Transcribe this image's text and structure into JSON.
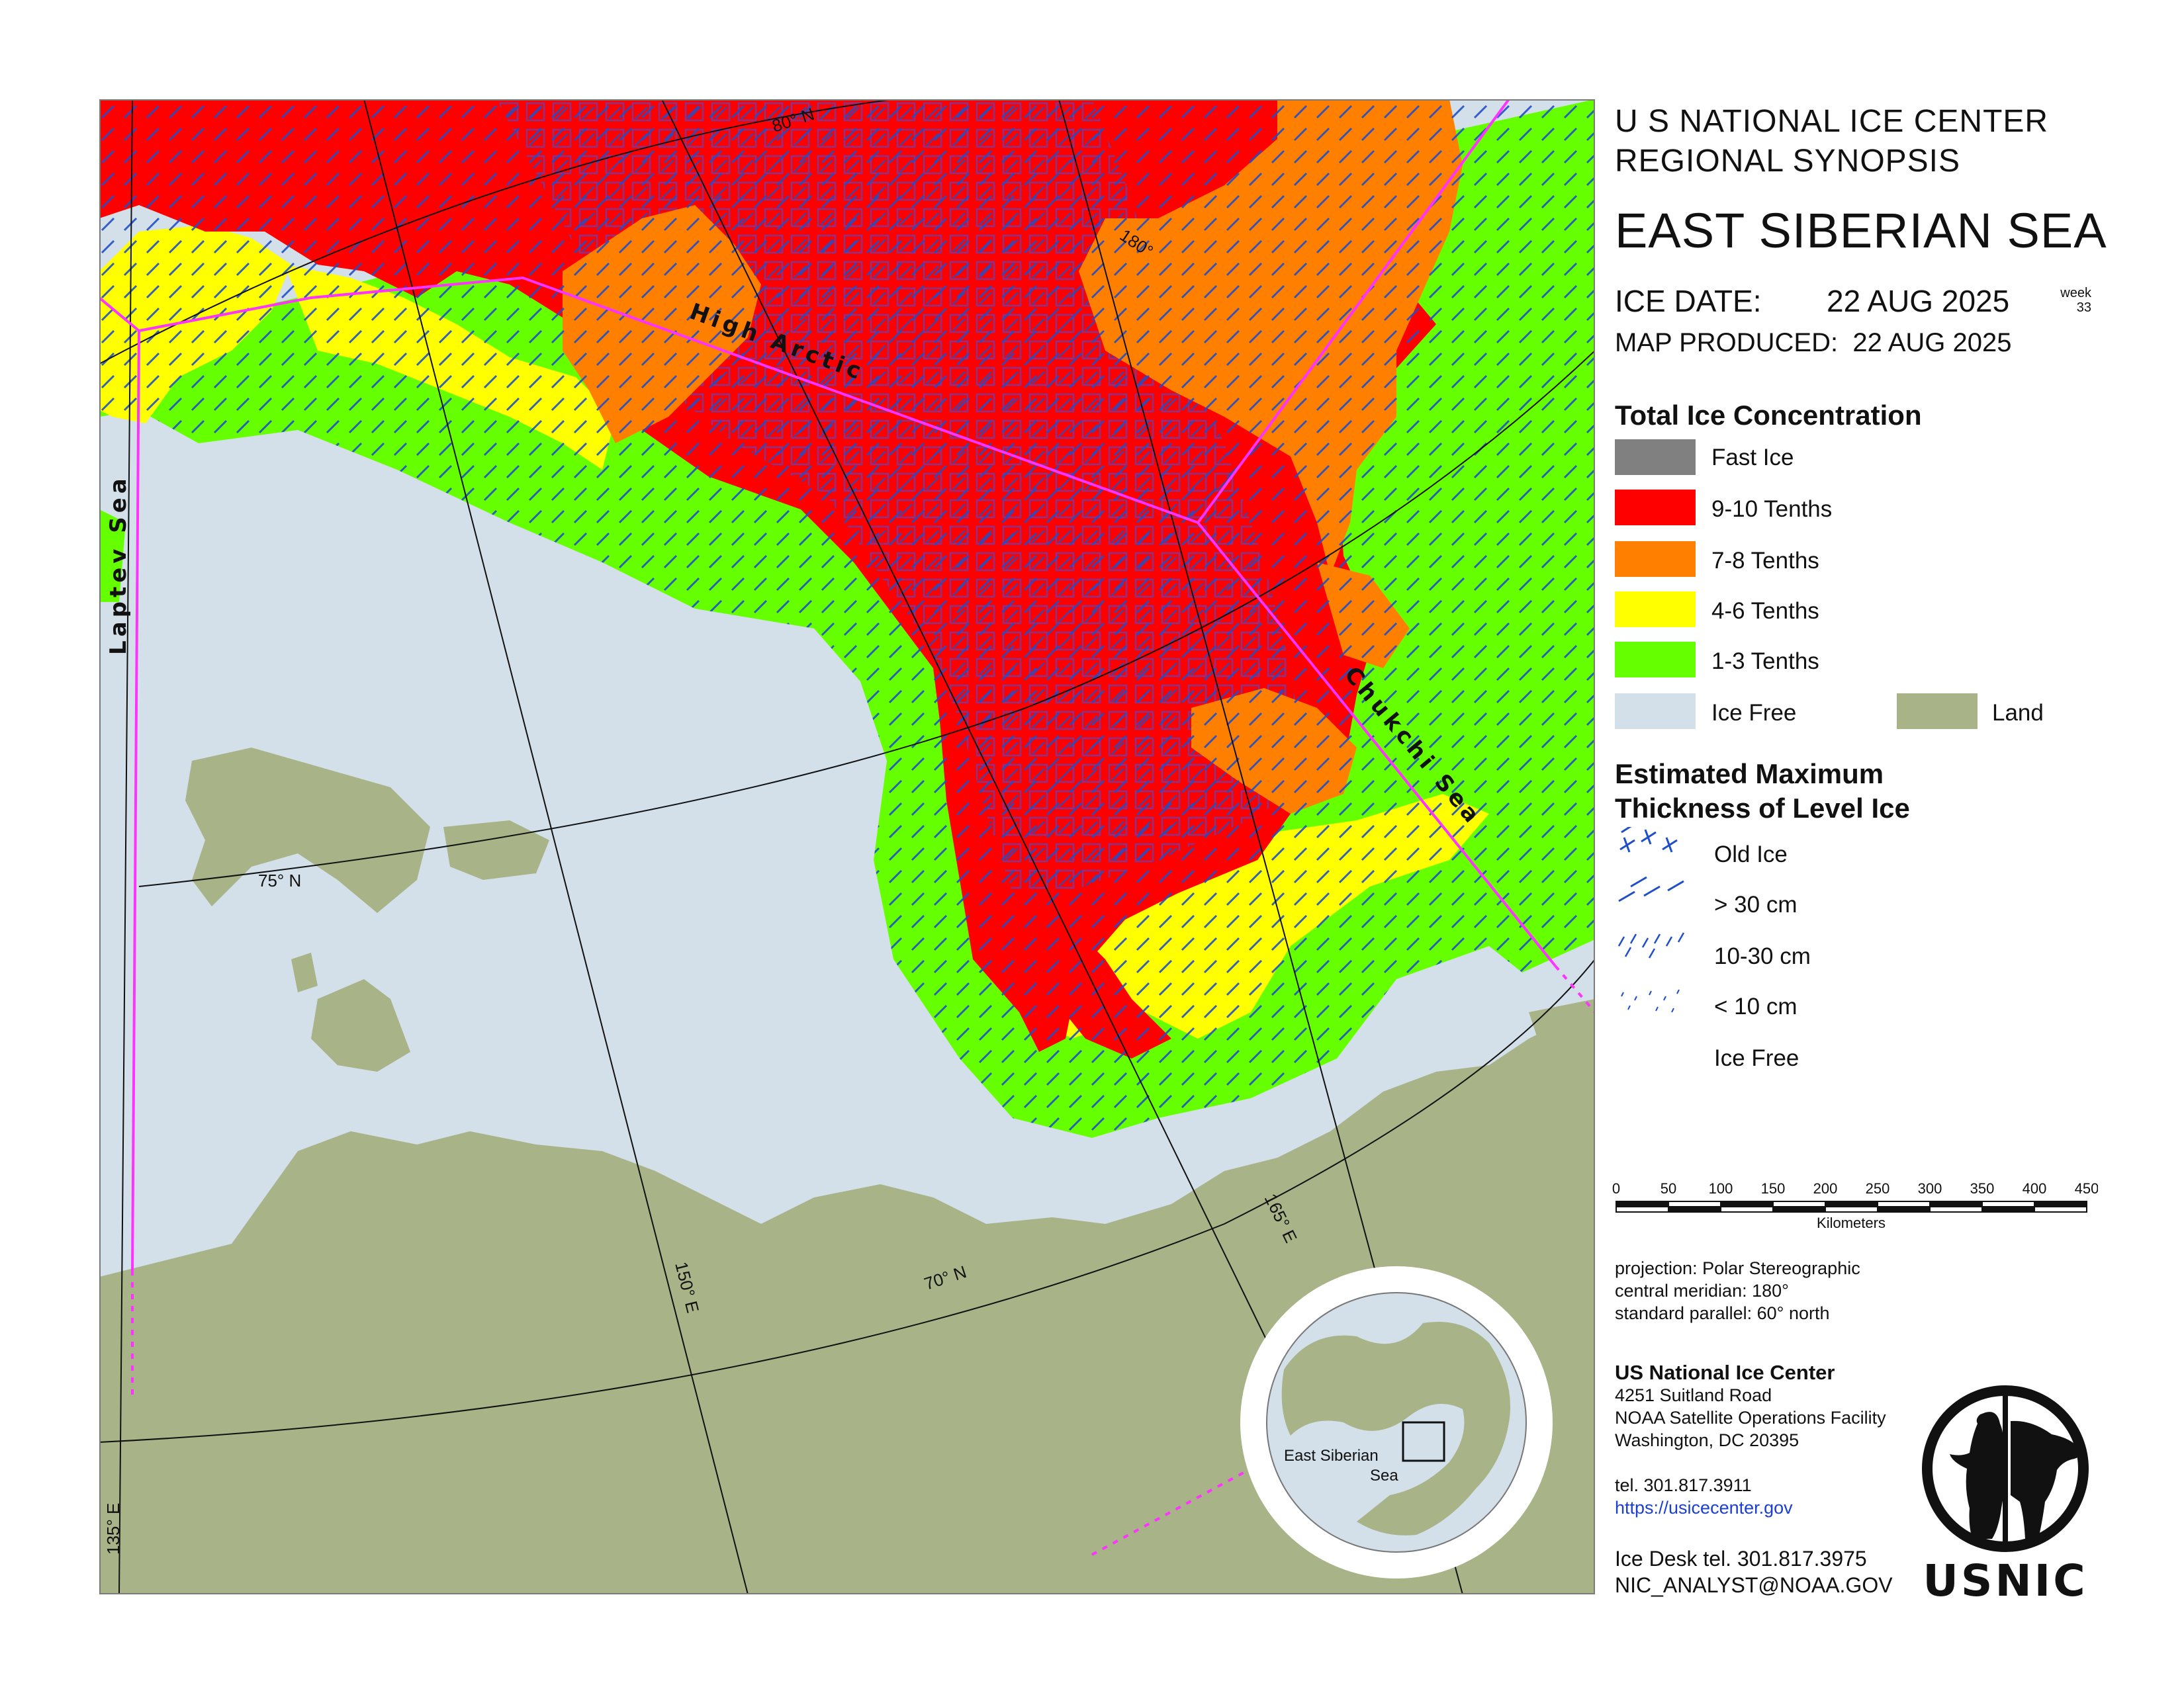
{
  "header": {
    "agency_line1": "U S NATIONAL ICE CENTER",
    "agency_line2": "REGIONAL SYNOPSIS",
    "region": "EAST SIBERIAN SEA",
    "ice_date_label": "ICE DATE:",
    "ice_date": "22 AUG 2025",
    "week_label": "week",
    "week_number": "33",
    "map_produced_label": "MAP PRODUCED:",
    "map_produced": "22 AUG 2025"
  },
  "legend_concentration": {
    "title": "Total Ice Concentration",
    "items": [
      {
        "label": "Fast Ice",
        "color": "#808080"
      },
      {
        "label": "9-10 Tenths",
        "color": "#ff0000"
      },
      {
        "label": "7-8 Tenths",
        "color": "#ff8000"
      },
      {
        "label": "4-6 Tenths",
        "color": "#ffff00"
      },
      {
        "label": "1-3 Tenths",
        "color": "#66ff00"
      },
      {
        "label": "Ice Free",
        "color": "#d3dfe9"
      },
      {
        "label": "Land",
        "color": "#a8b388"
      }
    ]
  },
  "legend_thickness": {
    "title_line1": "Estimated Maximum",
    "title_line2": "Thickness of Level Ice",
    "items": [
      {
        "label": "Old Ice",
        "pattern": "crosses"
      },
      {
        "label": "> 30 cm",
        "pattern": "long-dashes"
      },
      {
        "label": "10-30 cm",
        "pattern": "short-dashes"
      },
      {
        "label": "< 10 cm",
        "pattern": "dots"
      },
      {
        "label": "Ice Free",
        "pattern": "none"
      }
    ]
  },
  "scale": {
    "ticks": [
      "0",
      "50",
      "100",
      "150",
      "200",
      "250",
      "300",
      "350",
      "400",
      "450"
    ],
    "unit": "Kilometers"
  },
  "projection": {
    "line1": "projection: Polar Stereographic",
    "line2": "central meridian: 180°",
    "line3": "standard parallel:  60° north"
  },
  "address": {
    "org": "US National Ice Center",
    "line1": "4251 Suitland Road",
    "line2": "NOAA Satellite Operations Facility",
    "line3": "Washington, DC  20395",
    "tel": "tel. 301.817.3911",
    "url": "https://usicecenter.gov",
    "desk_tel": "Ice Desk tel. 301.817.3975",
    "email": "NIC_ANALYST@NOAA.GOV"
  },
  "logo_text": "USNIC",
  "map_labels": {
    "lat_80": "80° N",
    "lat_75": "75° N",
    "lat_70": "70° N",
    "lon_180": "180°",
    "lon_165": "165° E",
    "lon_150": "150° E",
    "lon_135": "135° E",
    "region_high_arctic": "High Arctic",
    "region_chukchi": "Chukchi Sea",
    "region_laptev": "Laptev Sea",
    "inset_label_line1": "East Siberian",
    "inset_label_line2": "Sea"
  },
  "colors": {
    "boundary": "#ff33ff",
    "pattern_blue": "#1f4fc8",
    "map_frame": "#7a7a7a"
  }
}
